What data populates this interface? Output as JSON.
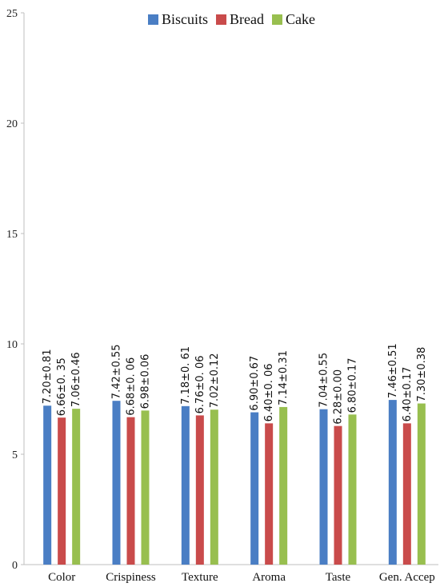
{
  "chart_data": {
    "type": "bar",
    "categories": [
      "Color",
      "Crispiness",
      "Texture",
      "Aroma",
      "Taste",
      "Gen. Accep"
    ],
    "series": [
      {
        "name": "Biscuits",
        "color": "#4A7EC4",
        "values": [
          7.2,
          7.42,
          7.18,
          6.9,
          7.04,
          7.46
        ],
        "labels": [
          "7.20±0.81",
          "7.42±0.55",
          "7.18±0. 61",
          "6.90±0.67",
          "7.04±0.55",
          "7.46±0.51"
        ]
      },
      {
        "name": "Bread",
        "color": "#C94B4B",
        "values": [
          6.66,
          6.68,
          6.76,
          6.4,
          6.28,
          6.4
        ],
        "labels": [
          "6.66±0. 35",
          "6.68±0. 06",
          "6.76±0. 06",
          "6.40±0. 06",
          "6.28±0.00",
          "6.40±0.17"
        ]
      },
      {
        "name": "Cake",
        "color": "#98BF4F",
        "values": [
          7.06,
          6.98,
          7.02,
          7.14,
          6.8,
          7.3
        ],
        "labels": [
          "7.06±0.46",
          "6.98±0.06",
          "7.02±0.12",
          "7.14±0.31",
          "6.80±0.17",
          "7.30±0.38"
        ]
      }
    ],
    "yticks": [
      "0",
      "5",
      "10",
      "15",
      "20",
      "25"
    ],
    "ylim": [
      0,
      25
    ],
    "grid": false,
    "legend": "top-center"
  }
}
